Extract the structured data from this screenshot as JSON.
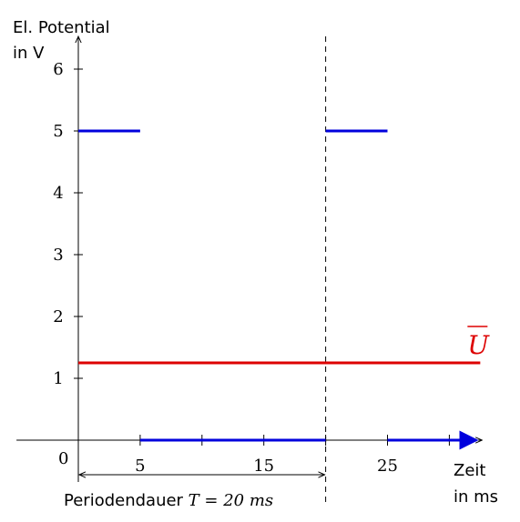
{
  "chart_data": {
    "type": "line",
    "y_axis_label_lines": [
      "El.  Potential",
      "in V"
    ],
    "x_axis_label_lines": [
      "Zeit",
      "in ms"
    ],
    "xlim": [
      -5,
      32.5
    ],
    "ylim": [
      -0.5,
      6.5
    ],
    "y_ticks": [
      1,
      2,
      3,
      4,
      5,
      6
    ],
    "x_ticks": [
      5,
      10,
      15,
      20,
      25,
      30
    ],
    "x_tick_labels": [
      {
        "value": 5,
        "label": "5"
      },
      {
        "value": 15,
        "label": "15"
      },
      {
        "value": 25,
        "label": "25"
      }
    ],
    "origin_label": "0",
    "signal": {
      "color": "#0000dd",
      "segments": [
        {
          "x": [
            0,
            5
          ],
          "y": 5
        },
        {
          "x": [
            5,
            20
          ],
          "y": 0
        },
        {
          "x": [
            20,
            25
          ],
          "y": 5
        },
        {
          "x": [
            25,
            32.5
          ],
          "y": 0
        }
      ]
    },
    "mean_line": {
      "color": "#dd0000",
      "y": 1.25,
      "x": [
        0,
        32.5
      ],
      "label": "U"
    },
    "period_marker": {
      "x": 20,
      "span": [
        0,
        20
      ],
      "label_text": "Periodendauer ",
      "label_math": "T = 20 ms"
    }
  }
}
